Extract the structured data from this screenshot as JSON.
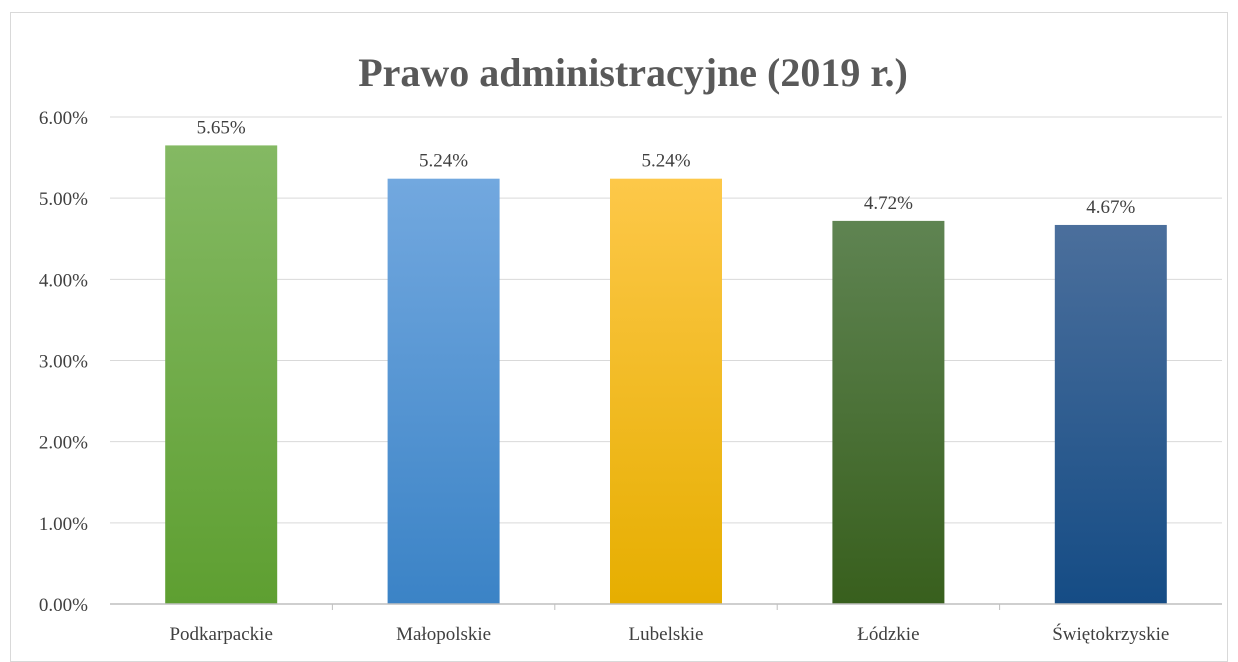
{
  "chart_data": {
    "type": "bar",
    "title": "Prawo administracyjne (2019 r.)",
    "xlabel": "",
    "ylabel": "",
    "ylim": [
      0,
      6
    ],
    "yticks": [
      "0.00%",
      "1.00%",
      "2.00%",
      "3.00%",
      "4.00%",
      "5.00%",
      "6.00%"
    ],
    "grid": true,
    "legend": "none",
    "categories": [
      "Podkarpackie",
      "Małopolskie",
      "Lubelskie",
      "Łódzkie",
      "Świętokrzyskie"
    ],
    "values": [
      5.65,
      5.24,
      5.24,
      4.72,
      4.67
    ],
    "value_labels": [
      "5.65%",
      "5.24%",
      "5.24%",
      "4.72%",
      "4.67%"
    ],
    "colors": [
      [
        "#84b963",
        "#5e9f31"
      ],
      [
        "#72a8df",
        "#3b83c6"
      ],
      [
        "#fdc849",
        "#e6ae00"
      ],
      [
        "#5f8452",
        "#385f1d"
      ],
      [
        "#4b6f9c",
        "#154c85"
      ]
    ]
  }
}
